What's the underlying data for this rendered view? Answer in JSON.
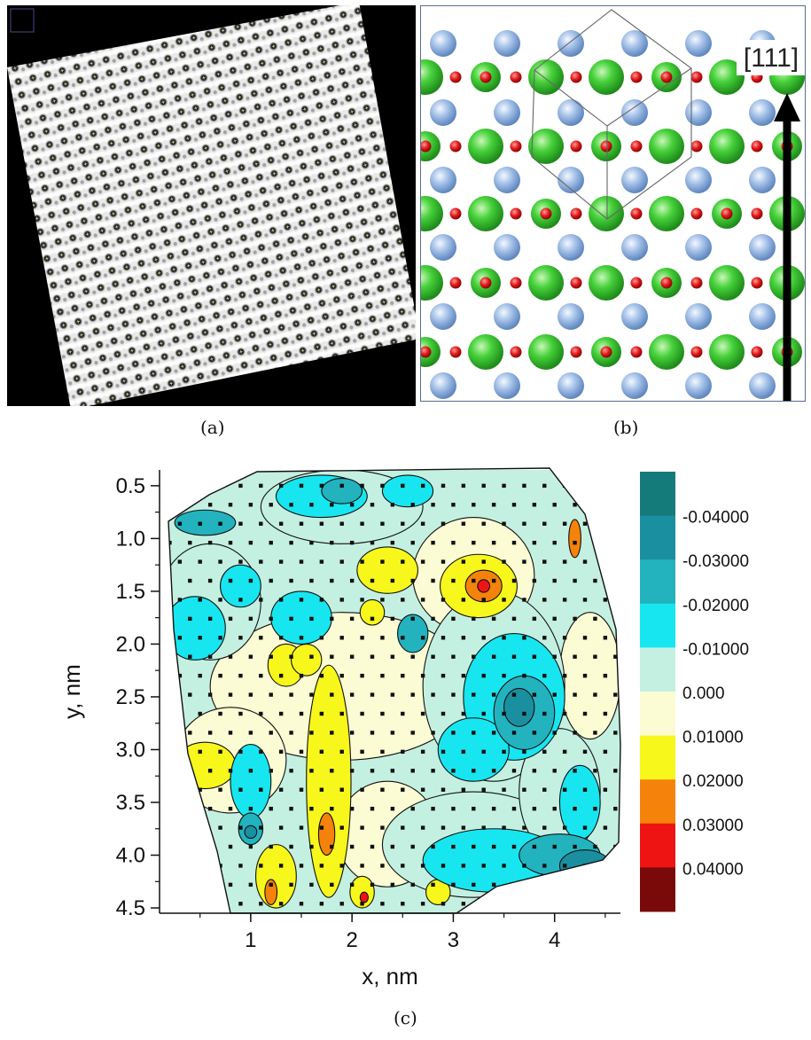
{
  "figure": {
    "captions": {
      "a": "(a)",
      "b": "(b)",
      "c": "(c)"
    },
    "panel_b": {
      "direction_label": "[111]"
    }
  },
  "chart_data": {
    "type": "heatmap",
    "subtype": "contour",
    "xlabel": "x, nm",
    "ylabel": "y, nm",
    "xlim": [
      0.1,
      4.65
    ],
    "ylim": [
      4.55,
      0.35
    ],
    "x_ticks": [
      "1",
      "2",
      "3",
      "4"
    ],
    "y_ticks": [
      "0.5",
      "1.0",
      "1.5",
      "2.0",
      "2.5",
      "3.0",
      "3.5",
      "4.0",
      "4.5"
    ],
    "y_axis_inverted": true,
    "grid": false,
    "legend_position": "right",
    "colorbar": [
      {
        "label": "",
        "color": "#157a7a"
      },
      {
        "label": "-0.04000",
        "color": "#1a8fa0"
      },
      {
        "label": "-0.03000",
        "color": "#22b3bf"
      },
      {
        "label": "-0.02000",
        "color": "#17e6f0"
      },
      {
        "label": "-0.01000",
        "color": "#c4f0e2"
      },
      {
        "label": "0.000",
        "color": "#fbfbd4"
      },
      {
        "label": "0.01000",
        "color": "#f7f71c"
      },
      {
        "label": "0.02000",
        "color": "#f5820a"
      },
      {
        "label": "0.03000",
        "color": "#ee1414"
      },
      {
        "label": "0.04000",
        "color": "#7a0a0a"
      }
    ],
    "regions": [
      {
        "level": 0.005,
        "x": 1.9,
        "y": 2.4,
        "rx": 1.3,
        "ry": 0.7
      },
      {
        "level": 0.005,
        "x": 3.2,
        "y": 1.35,
        "rx": 0.6,
        "ry": 0.55
      },
      {
        "level": 0.005,
        "x": 0.8,
        "y": 3.1,
        "rx": 0.55,
        "ry": 0.5
      },
      {
        "level": 0.005,
        "x": 2.35,
        "y": 3.8,
        "rx": 0.5,
        "ry": 0.5
      },
      {
        "level": 0.005,
        "x": 4.35,
        "y": 2.3,
        "rx": 0.3,
        "ry": 0.6
      },
      {
        "level": 0.015,
        "x": 1.77,
        "y": 3.3,
        "rx": 0.22,
        "ry": 1.1
      },
      {
        "level": 0.015,
        "x": 3.25,
        "y": 1.45,
        "rx": 0.38,
        "ry": 0.3
      },
      {
        "level": 0.015,
        "x": 2.35,
        "y": 1.3,
        "rx": 0.3,
        "ry": 0.22
      },
      {
        "level": 0.015,
        "x": 0.55,
        "y": 3.15,
        "rx": 0.3,
        "ry": 0.22
      },
      {
        "level": 0.015,
        "x": 1.25,
        "y": 4.2,
        "rx": 0.2,
        "ry": 0.3
      },
      {
        "level": 0.015,
        "x": 2.1,
        "y": 4.35,
        "rx": 0.12,
        "ry": 0.15
      },
      {
        "level": 0.015,
        "x": 2.85,
        "y": 4.35,
        "rx": 0.12,
        "ry": 0.12
      },
      {
        "level": 0.015,
        "x": 1.35,
        "y": 2.2,
        "rx": 0.18,
        "ry": 0.2
      },
      {
        "level": 0.015,
        "x": 1.55,
        "y": 2.15,
        "rx": 0.15,
        "ry": 0.15
      },
      {
        "level": 0.015,
        "x": 2.2,
        "y": 1.7,
        "rx": 0.12,
        "ry": 0.12
      },
      {
        "level": 0.025,
        "x": 3.3,
        "y": 1.45,
        "rx": 0.18,
        "ry": 0.15
      },
      {
        "level": 0.025,
        "x": 1.75,
        "y": 3.8,
        "rx": 0.08,
        "ry": 0.2
      },
      {
        "level": 0.025,
        "x": 1.2,
        "y": 4.35,
        "rx": 0.06,
        "ry": 0.12
      },
      {
        "level": 0.025,
        "x": 4.2,
        "y": 1.0,
        "rx": 0.06,
        "ry": 0.18
      },
      {
        "level": 0.035,
        "x": 3.3,
        "y": 1.45,
        "rx": 0.06,
        "ry": 0.06
      },
      {
        "level": 0.035,
        "x": 2.12,
        "y": 4.4,
        "rx": 0.04,
        "ry": 0.05
      },
      {
        "level": -0.005,
        "x": 3.4,
        "y": 2.4,
        "rx": 0.7,
        "ry": 0.9
      },
      {
        "level": -0.005,
        "x": 3.2,
        "y": 3.9,
        "rx": 0.9,
        "ry": 0.5
      },
      {
        "level": -0.005,
        "x": 0.6,
        "y": 1.6,
        "rx": 0.5,
        "ry": 0.55
      },
      {
        "level": -0.005,
        "x": 1.9,
        "y": 0.7,
        "rx": 0.8,
        "ry": 0.35
      },
      {
        "level": -0.005,
        "x": 4.05,
        "y": 3.4,
        "rx": 0.4,
        "ry": 0.6
      },
      {
        "level": -0.015,
        "x": 3.6,
        "y": 2.5,
        "rx": 0.5,
        "ry": 0.6
      },
      {
        "level": -0.015,
        "x": 3.2,
        "y": 3.0,
        "rx": 0.35,
        "ry": 0.3
      },
      {
        "level": -0.015,
        "x": 3.4,
        "y": 4.05,
        "rx": 0.7,
        "ry": 0.3
      },
      {
        "level": -0.015,
        "x": 0.45,
        "y": 1.85,
        "rx": 0.3,
        "ry": 0.3
      },
      {
        "level": -0.015,
        "x": 1.5,
        "y": 1.75,
        "rx": 0.3,
        "ry": 0.25
      },
      {
        "level": -0.015,
        "x": 1.7,
        "y": 0.6,
        "rx": 0.45,
        "ry": 0.2
      },
      {
        "level": -0.015,
        "x": 2.55,
        "y": 0.55,
        "rx": 0.25,
        "ry": 0.15
      },
      {
        "level": -0.015,
        "x": 1.0,
        "y": 3.3,
        "rx": 0.2,
        "ry": 0.35
      },
      {
        "level": -0.015,
        "x": 0.9,
        "y": 1.45,
        "rx": 0.2,
        "ry": 0.2
      },
      {
        "level": -0.015,
        "x": 4.25,
        "y": 3.5,
        "rx": 0.2,
        "ry": 0.35
      },
      {
        "level": -0.025,
        "x": 3.7,
        "y": 2.65,
        "rx": 0.3,
        "ry": 0.35
      },
      {
        "level": -0.025,
        "x": 4.05,
        "y": 4.0,
        "rx": 0.4,
        "ry": 0.2
      },
      {
        "level": -0.025,
        "x": 1.0,
        "y": 3.75,
        "rx": 0.12,
        "ry": 0.15
      },
      {
        "level": -0.025,
        "x": 1.9,
        "y": 0.55,
        "rx": 0.2,
        "ry": 0.12
      },
      {
        "level": -0.025,
        "x": 0.55,
        "y": 0.85,
        "rx": 0.3,
        "ry": 0.12
      },
      {
        "level": -0.025,
        "x": 2.6,
        "y": 1.9,
        "rx": 0.15,
        "ry": 0.18
      },
      {
        "level": -0.035,
        "x": 3.65,
        "y": 2.6,
        "rx": 0.15,
        "ry": 0.18
      },
      {
        "level": -0.035,
        "x": 4.3,
        "y": 4.1,
        "rx": 0.25,
        "ry": 0.15
      },
      {
        "level": -0.035,
        "x": 1.0,
        "y": 3.78,
        "rx": 0.06,
        "ry": 0.06
      },
      {
        "level": -0.045,
        "x": 4.4,
        "y": 4.15,
        "rx": 0.12,
        "ry": 0.08
      }
    ]
  }
}
